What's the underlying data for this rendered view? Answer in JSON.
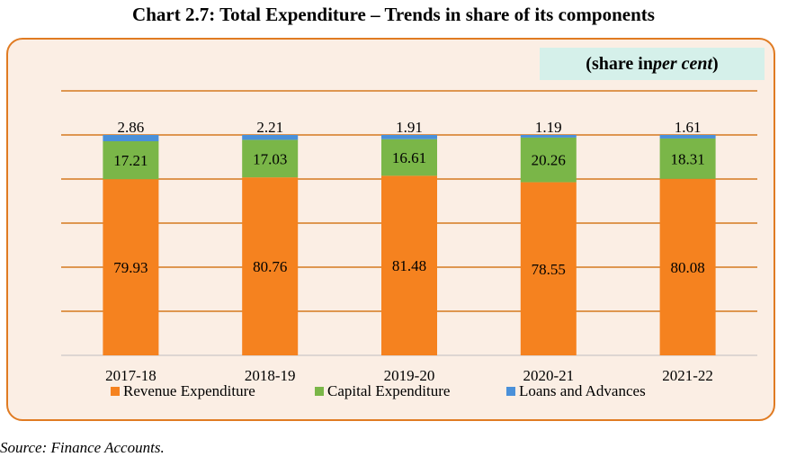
{
  "title": "Chart 2.7: Total Expenditure – Trends in share of its components",
  "unit_note": {
    "open": "(share in ",
    "italic": "per cent",
    "close": ")"
  },
  "source": "Source: Finance Accounts.",
  "colors": {
    "revenue": "#f5821f",
    "capital": "#7ab648",
    "loans": "#4a90d9",
    "grid": "#d4781f",
    "frame": "#e07b22",
    "background": "#fbeee4"
  },
  "chart_data": {
    "type": "bar",
    "stacked": true,
    "categories": [
      "2017-18",
      "2018-19",
      "2019-20",
      "2020-21",
      "2021-22"
    ],
    "series": [
      {
        "name": "Revenue Expenditure",
        "values": [
          79.93,
          80.76,
          81.48,
          78.55,
          80.08
        ],
        "color": "#f5821f"
      },
      {
        "name": "Capital Expenditure",
        "values": [
          17.21,
          17.03,
          16.61,
          20.26,
          18.31
        ],
        "color": "#7ab648"
      },
      {
        "name": "Loans and Advances",
        "values": [
          2.86,
          2.21,
          1.91,
          1.19,
          1.61
        ],
        "color": "#4a90d9"
      }
    ],
    "ylim": [
      0,
      120
    ],
    "grid": true,
    "legend": "bottom"
  }
}
